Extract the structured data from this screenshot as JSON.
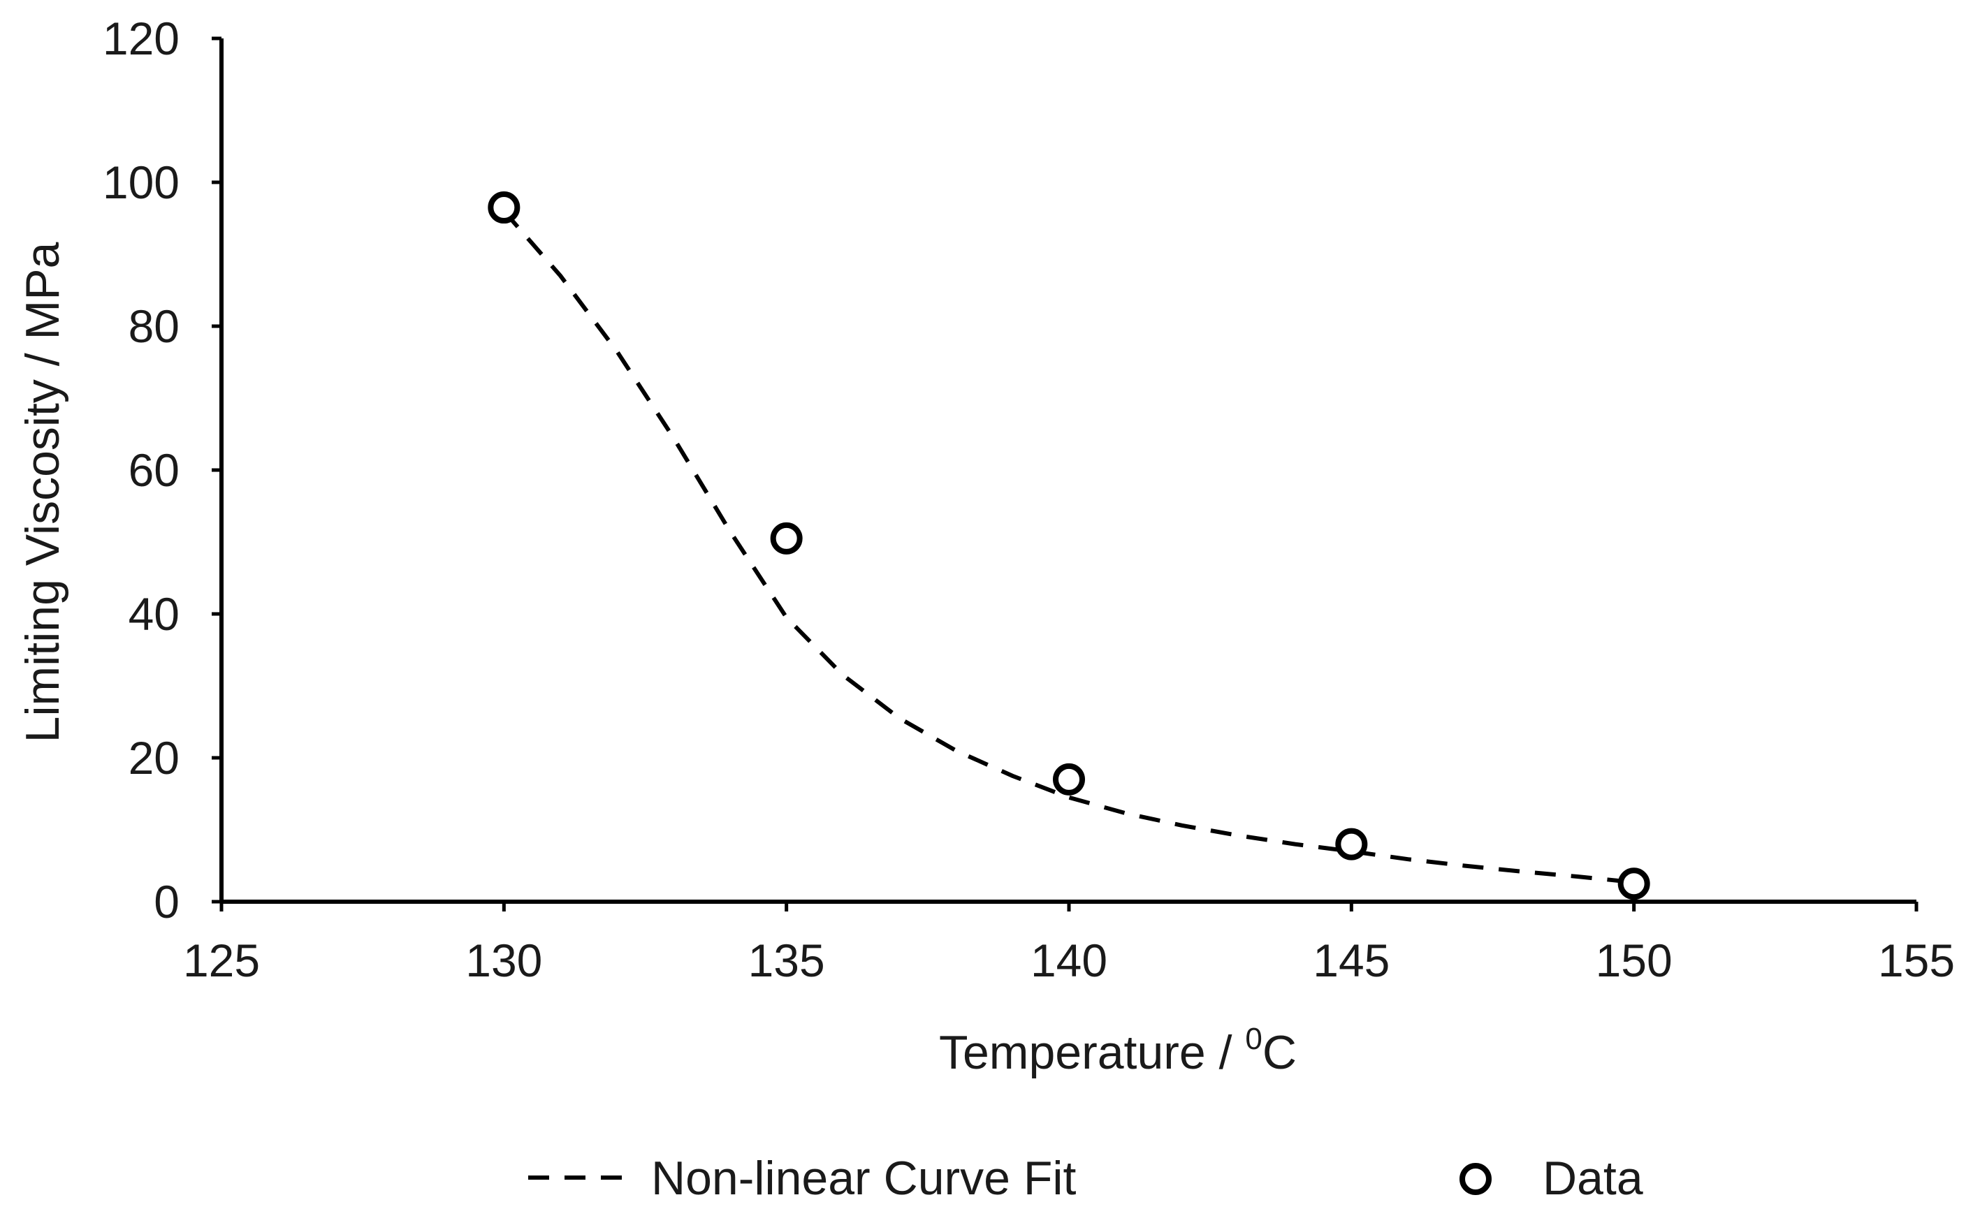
{
  "chart_data": {
    "type": "scatter",
    "title": "",
    "xlabel": "Temperature / ",
    "xlabel_sup": "0",
    "xlabel_unit": "C",
    "ylabel": "Limiting Viscosity / MPa",
    "xlim": [
      125,
      155
    ],
    "ylim": [
      0,
      120
    ],
    "xticks": [
      125,
      130,
      135,
      140,
      145,
      150,
      155
    ],
    "yticks": [
      0,
      20,
      40,
      60,
      80,
      100,
      120
    ],
    "grid": false,
    "legend_position": "bottom",
    "series": [
      {
        "name": "Non-linear Curve Fit",
        "style": "dashed-line",
        "x": [
          130,
          131,
          132,
          133,
          134,
          135,
          136,
          137,
          138,
          139,
          140,
          141,
          142,
          143,
          144,
          145,
          146,
          147,
          148,
          149,
          150
        ],
        "y": [
          96,
          87,
          76.5,
          64.5,
          51.5,
          39.5,
          31.5,
          25.5,
          21,
          17.5,
          14.5,
          12.3,
          10.6,
          9.2,
          8,
          7,
          5.9,
          5,
          4.2,
          3.5,
          2.7
        ]
      },
      {
        "name": "Data",
        "style": "open-circle",
        "x": [
          130,
          135,
          140,
          145,
          150
        ],
        "y": [
          96.5,
          50.5,
          17,
          8,
          2.5
        ]
      }
    ]
  }
}
